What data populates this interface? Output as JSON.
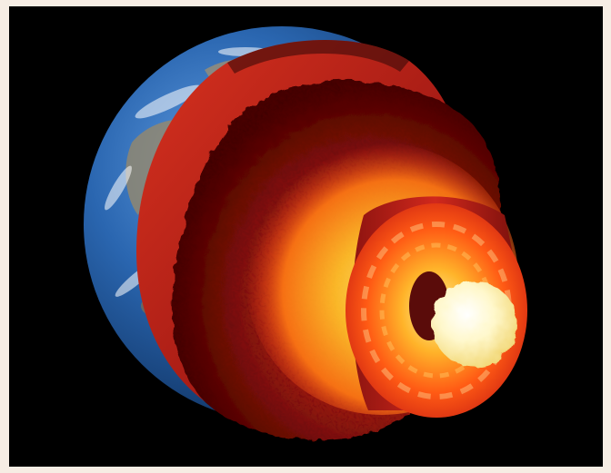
{
  "scene": {
    "subject": "earth-cutaway-illustration",
    "layers": [
      {
        "name": "crust",
        "color": "#2f6fb8"
      },
      {
        "name": "upper-mantle",
        "color": "#b5231b"
      },
      {
        "name": "lower-mantle",
        "color": "#6e1510"
      },
      {
        "name": "outer-core",
        "color": "#ff8a1a"
      },
      {
        "name": "inner-core",
        "color": "#fff6c2"
      }
    ],
    "colors": {
      "background": "#000000",
      "border": "#f6ede4",
      "ocean": "#2a66b0",
      "land": "#9c8a66",
      "mantle_red": "#c8281c",
      "mantle_dark": "#5a0f0c",
      "glow_yellow": "#ffd23a",
      "core_white": "#fffbe0"
    }
  }
}
